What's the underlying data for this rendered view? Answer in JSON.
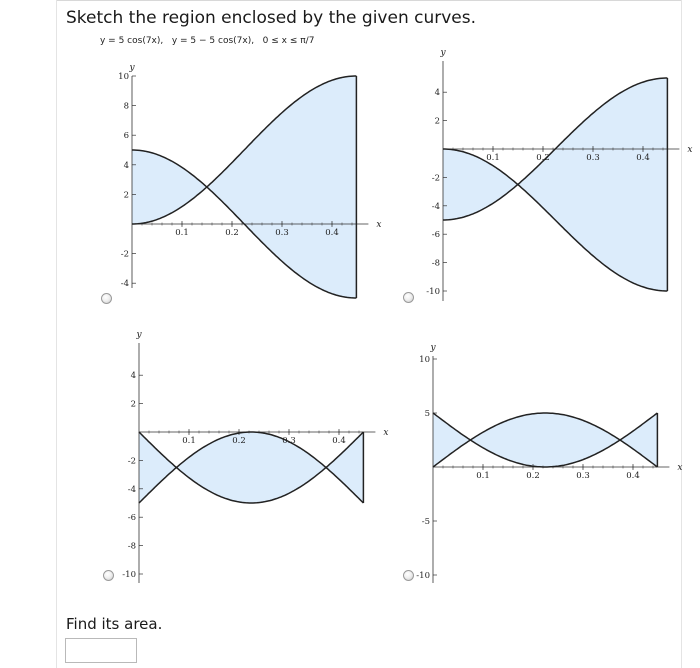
{
  "question": {
    "prompt": "Sketch the region enclosed by the given curves."
  },
  "equation": {
    "text": "y = 5 cos(7x),   y = 5 − 5 cos(7x),   0 ≤ x ≤ π/7"
  },
  "colors": {
    "fill": "#dcecfb",
    "curve": "#222222",
    "axis": "#333333",
    "radio_border": "#9a9a9a"
  },
  "options": [
    {
      "id": "A",
      "curves": {
        "f": "5 cos(7x)",
        "g": "5 - 5 cos(7x)"
      },
      "axes": {
        "x_label": "x",
        "y_label": "y",
        "x_ticks": [
          "0.1",
          "0.2",
          "0.3",
          "0.4"
        ],
        "y_ticks": [
          "10",
          "8",
          "6",
          "4",
          "2",
          "-2",
          "-4"
        ]
      }
    },
    {
      "id": "B",
      "curves": {
        "f": "-5 cos(7x)",
        "g": "5 cos(7x) - 5"
      },
      "axes": {
        "x_label": "x",
        "y_label": "y",
        "x_ticks": [
          "0.1",
          "0.2",
          "0.3",
          "0.4"
        ],
        "y_ticks": [
          "4",
          "2",
          "-2",
          "-4",
          "-6",
          "-8",
          "-10"
        ]
      }
    },
    {
      "id": "C",
      "curves": {
        "f": "-5 sin(7x)",
        "g": "5 sin(7x) - 5"
      },
      "axes": {
        "x_label": "x",
        "y_label": "y",
        "x_ticks": [
          "0.1",
          "0.2",
          "0.3",
          "0.4"
        ],
        "y_ticks": [
          "4",
          "2",
          "-2",
          "-4",
          "-6",
          "-8",
          "-10"
        ]
      }
    },
    {
      "id": "D",
      "curves": {
        "f": "5 sin(7x)",
        "g": "5 - 5 sin(7x)"
      },
      "axes": {
        "x_label": "x",
        "y_label": "y",
        "x_ticks": [
          "0.1",
          "0.2",
          "0.3",
          "0.4"
        ],
        "y_ticks": [
          "10",
          "5",
          "-5",
          "-10"
        ]
      }
    }
  ],
  "answer": {
    "label": "Find its area.",
    "value": ""
  }
}
